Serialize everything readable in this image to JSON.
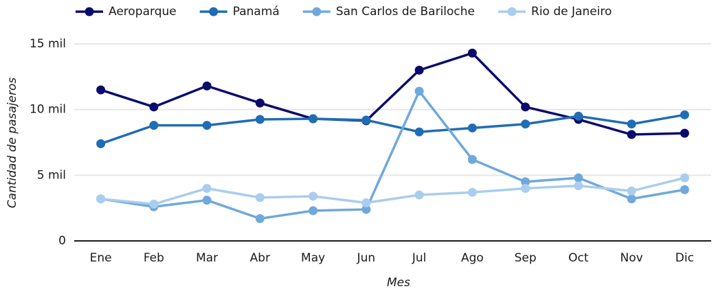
{
  "chart_data": {
    "type": "line",
    "x_label": "Mes",
    "y_label": "Cantidad de pasajeros",
    "categories": [
      "Ene",
      "Feb",
      "Mar",
      "Abr",
      "May",
      "Jun",
      "Jul",
      "Ago",
      "Sep",
      "Oct",
      "Nov",
      "Dic"
    ],
    "series": [
      {
        "name": "Aeroparque",
        "color": "#0b0b6e",
        "values": [
          11500,
          10200,
          11800,
          10500,
          9300,
          9150,
          13000,
          14300,
          10200,
          9250,
          8100,
          8200
        ]
      },
      {
        "name": "Panamá",
        "color": "#1f6db5",
        "values": [
          7400,
          8800,
          8800,
          9250,
          9300,
          9200,
          8300,
          8600,
          8900,
          9500,
          8900,
          9600
        ]
      },
      {
        "name": "San Carlos de Bariloche",
        "color": "#6fa8dc",
        "values": [
          3200,
          2600,
          3100,
          1700,
          2300,
          2400,
          11400,
          6200,
          4500,
          4800,
          3200,
          3900
        ]
      },
      {
        "name": "Rio de Janeiro",
        "color": "#a9cdee",
        "values": [
          3200,
          2800,
          4000,
          3300,
          3400,
          2900,
          3500,
          3700,
          4000,
          4200,
          3800,
          4800
        ]
      }
    ],
    "ylim": [
      0,
      15000
    ],
    "yticks": [
      0,
      {
        "value": 5000,
        "label": "5 mil"
      },
      {
        "value": 10000,
        "label": "10 mil"
      },
      {
        "value": 15000,
        "label": "15 mil"
      }
    ],
    "grid": true,
    "legend": "top"
  }
}
